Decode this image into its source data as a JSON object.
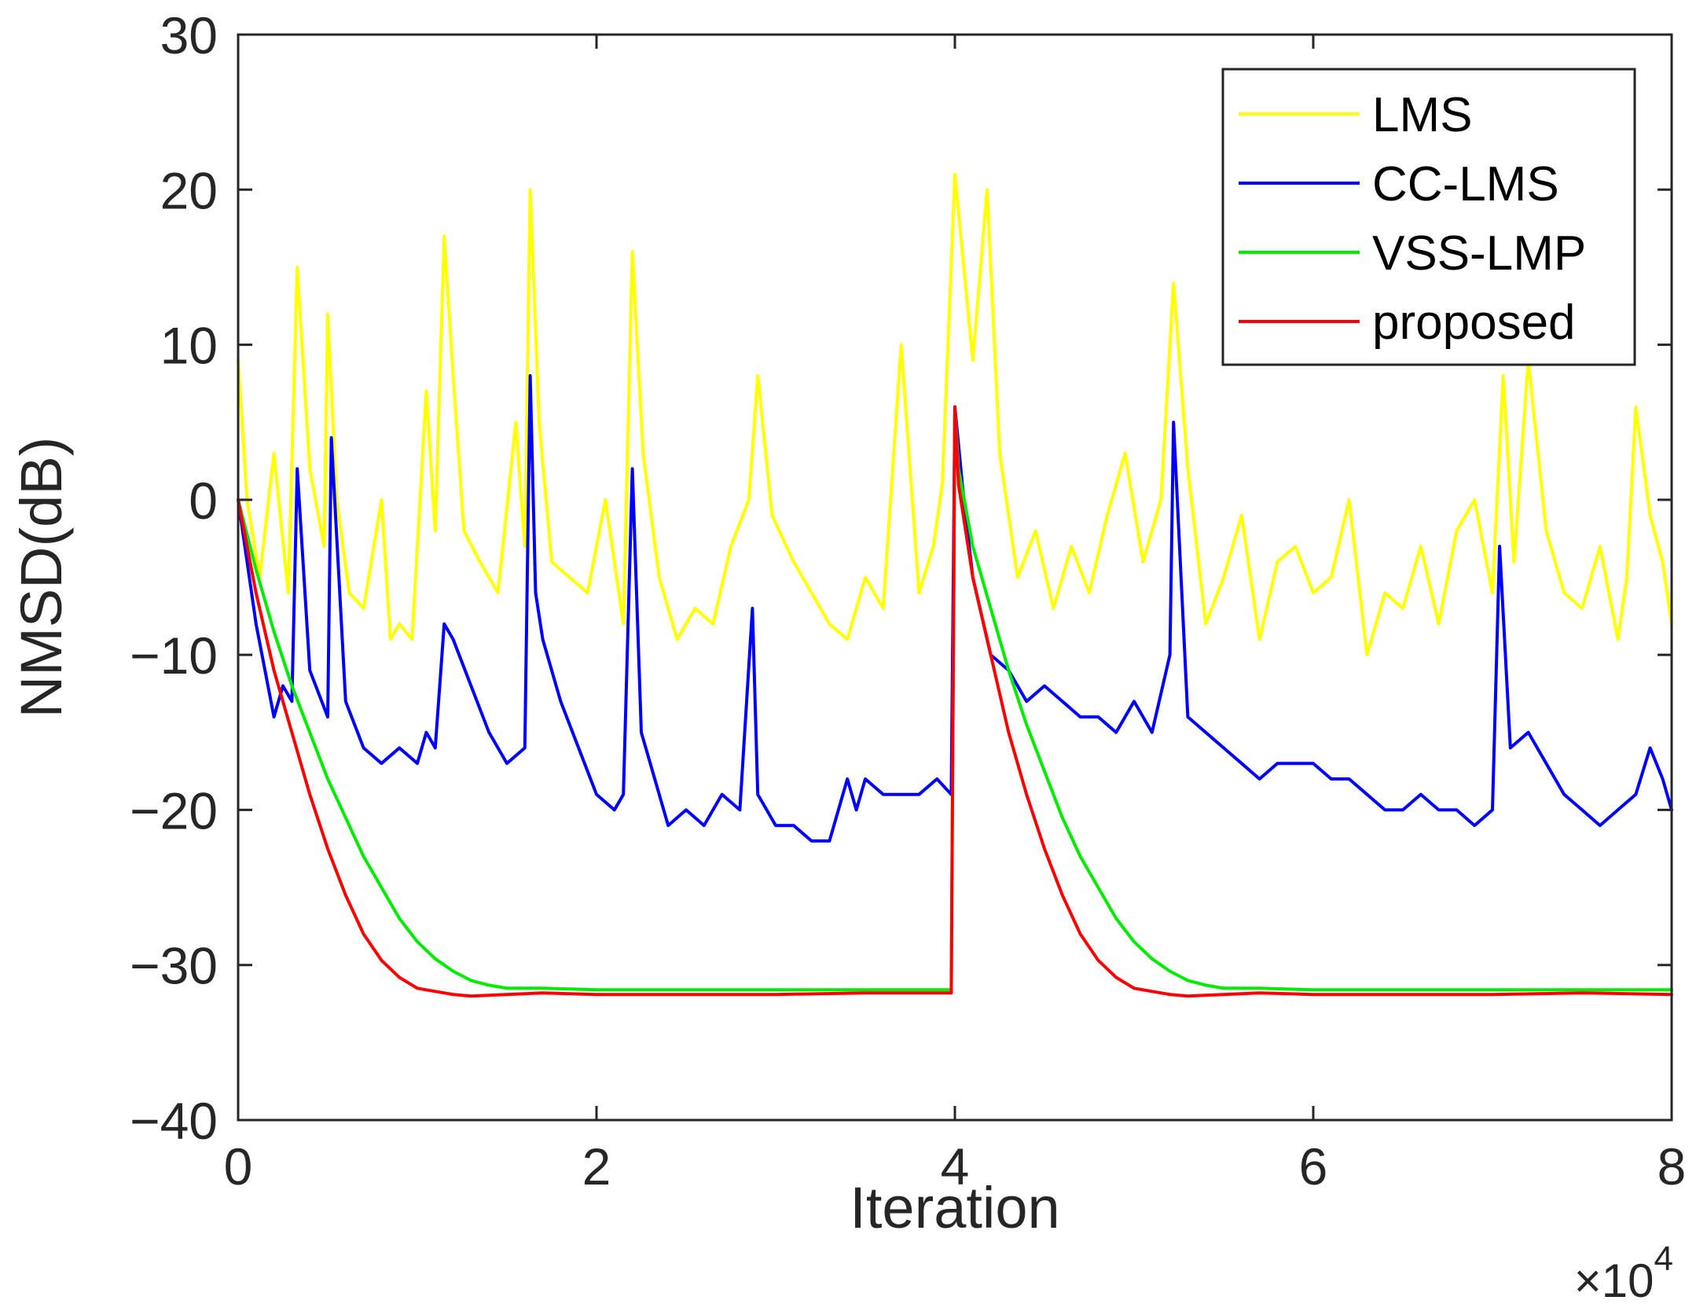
{
  "chart_data": {
    "type": "line",
    "title": "",
    "xlabel": "Iteration",
    "ylabel": "NMSD(dB)",
    "x_multiplier_label": {
      "base": "×10",
      "exponent": "4"
    },
    "xlim": [
      0,
      8
    ],
    "ylim": [
      -40,
      30
    ],
    "xticks": [
      0,
      2,
      4,
      6,
      8
    ],
    "xtick_labels": [
      "0",
      "2",
      "4",
      "6",
      "8"
    ],
    "yticks": [
      30,
      20,
      10,
      0,
      -10,
      -20,
      -30,
      -40
    ],
    "ytick_labels": [
      "30",
      "20",
      "10",
      "0",
      "−10",
      "−20",
      "−30",
      "−40"
    ],
    "grid": false,
    "legend_position": "top-right",
    "series": [
      {
        "name": "LMS",
        "color": "#ffff00",
        "x": [
          0,
          0.05,
          0.12,
          0.2,
          0.28,
          0.33,
          0.4,
          0.48,
          0.5,
          0.55,
          0.62,
          0.7,
          0.8,
          0.85,
          0.9,
          0.97,
          1.05,
          1.1,
          1.15,
          1.2,
          1.26,
          1.35,
          1.45,
          1.55,
          1.6,
          1.63,
          1.68,
          1.75,
          1.85,
          1.95,
          2.05,
          2.15,
          2.2,
          2.26,
          2.35,
          2.45,
          2.55,
          2.65,
          2.75,
          2.85,
          2.9,
          2.98,
          3.1,
          3.2,
          3.3,
          3.4,
          3.5,
          3.6,
          3.7,
          3.8,
          3.88,
          3.93,
          4.0,
          4.05,
          4.1,
          4.18,
          4.25,
          4.35,
          4.45,
          4.55,
          4.65,
          4.75,
          4.85,
          4.95,
          5.05,
          5.15,
          5.22,
          5.3,
          5.4,
          5.5,
          5.6,
          5.7,
          5.8,
          5.9,
          6.0,
          6.1,
          6.2,
          6.3,
          6.4,
          6.5,
          6.6,
          6.7,
          6.8,
          6.9,
          7.0,
          7.06,
          7.12,
          7.2,
          7.3,
          7.4,
          7.5,
          7.6,
          7.7,
          7.75,
          7.8,
          7.88,
          7.95,
          8.0
        ],
        "values": [
          9,
          0,
          -5,
          3,
          -6,
          15,
          2,
          -3,
          12,
          0,
          -6,
          -7,
          0,
          -9,
          -8,
          -9,
          7,
          -2,
          17,
          8,
          -2,
          -4,
          -6,
          5,
          -3,
          20,
          5,
          -4,
          -5,
          -6,
          0,
          -8,
          16,
          3,
          -5,
          -9,
          -7,
          -8,
          -3,
          0,
          8,
          -1,
          -4,
          -6,
          -8,
          -9,
          -5,
          -7,
          10,
          -6,
          -3,
          1,
          21,
          15,
          9,
          20,
          3,
          -5,
          -2,
          -7,
          -3,
          -6,
          -1,
          3,
          -4,
          0,
          14,
          2,
          -8,
          -5,
          -1,
          -9,
          -4,
          -3,
          -6,
          -5,
          0,
          -10,
          -6,
          -7,
          -3,
          -8,
          -2,
          0,
          -6,
          8,
          -4,
          9,
          -2,
          -6,
          -7,
          -3,
          -9,
          -5,
          6,
          -1,
          -4,
          -8
        ]
      },
      {
        "name": "CC-LMS",
        "color": "#0000ff",
        "x": [
          0,
          0.05,
          0.1,
          0.15,
          0.2,
          0.25,
          0.3,
          0.33,
          0.4,
          0.5,
          0.52,
          0.6,
          0.7,
          0.8,
          0.9,
          1.0,
          1.05,
          1.1,
          1.15,
          1.2,
          1.3,
          1.4,
          1.5,
          1.6,
          1.63,
          1.66,
          1.7,
          1.8,
          1.9,
          2.0,
          2.1,
          2.15,
          2.2,
          2.25,
          2.3,
          2.4,
          2.5,
          2.6,
          2.7,
          2.8,
          2.87,
          2.9,
          3.0,
          3.1,
          3.2,
          3.3,
          3.4,
          3.45,
          3.5,
          3.6,
          3.7,
          3.8,
          3.9,
          3.98,
          4.0,
          4.05,
          4.1,
          4.2,
          4.3,
          4.4,
          4.5,
          4.6,
          4.7,
          4.8,
          4.9,
          5.0,
          5.1,
          5.2,
          5.22,
          5.3,
          5.4,
          5.5,
          5.6,
          5.7,
          5.8,
          5.9,
          6.0,
          6.1,
          6.2,
          6.3,
          6.4,
          6.5,
          6.6,
          6.7,
          6.8,
          6.9,
          7.0,
          7.04,
          7.1,
          7.2,
          7.3,
          7.4,
          7.5,
          7.6,
          7.7,
          7.8,
          7.88,
          7.95,
          8.0
        ],
        "values": [
          0,
          -4,
          -8,
          -11,
          -14,
          -12,
          -13,
          2,
          -11,
          -14,
          4,
          -13,
          -16,
          -17,
          -16,
          -17,
          -15,
          -16,
          -8,
          -9,
          -12,
          -15,
          -17,
          -16,
          8,
          -6,
          -9,
          -13,
          -16,
          -19,
          -20,
          -19,
          2,
          -15,
          -17,
          -21,
          -20,
          -21,
          -19,
          -20,
          -7,
          -19,
          -21,
          -21,
          -22,
          -22,
          -18,
          -20,
          -18,
          -19,
          -19,
          -19,
          -18,
          -19,
          6,
          0,
          -5,
          -10,
          -11,
          -13,
          -12,
          -13,
          -14,
          -14,
          -15,
          -13,
          -15,
          -10,
          5,
          -14,
          -15,
          -16,
          -17,
          -18,
          -17,
          -17,
          -17,
          -18,
          -18,
          -19,
          -20,
          -20,
          -19,
          -20,
          -20,
          -21,
          -20,
          -3,
          -16,
          -15,
          -17,
          -19,
          -20,
          -21,
          -20,
          -19,
          -16,
          -18,
          -20
        ]
      },
      {
        "name": "VSS-LMP",
        "color": "#00ee00",
        "x": [
          0,
          0.1,
          0.2,
          0.3,
          0.4,
          0.5,
          0.6,
          0.7,
          0.8,
          0.9,
          1.0,
          1.1,
          1.2,
          1.3,
          1.4,
          1.5,
          1.7,
          2.0,
          2.5,
          3.0,
          3.5,
          3.98,
          4.0,
          4.02,
          4.1,
          4.2,
          4.3,
          4.4,
          4.5,
          4.6,
          4.7,
          4.8,
          4.9,
          5.0,
          5.1,
          5.2,
          5.3,
          5.4,
          5.5,
          5.7,
          6.0,
          6.5,
          7.0,
          7.5,
          8.0
        ],
        "values": [
          0,
          -4.5,
          -8.5,
          -12,
          -15,
          -18,
          -20.5,
          -23,
          -25,
          -27,
          -28.5,
          -29.6,
          -30.4,
          -31,
          -31.3,
          -31.5,
          -31.5,
          -31.6,
          -31.6,
          -31.6,
          -31.6,
          -31.6,
          6,
          2,
          -3,
          -7,
          -11,
          -14.5,
          -17.5,
          -20.5,
          -23,
          -25,
          -27,
          -28.5,
          -29.6,
          -30.4,
          -31,
          -31.3,
          -31.5,
          -31.5,
          -31.6,
          -31.6,
          -31.6,
          -31.6,
          -31.6
        ]
      },
      {
        "name": "proposed",
        "color": "#ff0000",
        "x": [
          0,
          0.1,
          0.2,
          0.3,
          0.4,
          0.5,
          0.6,
          0.7,
          0.8,
          0.9,
          1.0,
          1.1,
          1.2,
          1.3,
          1.5,
          1.7,
          2.0,
          2.5,
          3.0,
          3.5,
          3.98,
          4.0,
          4.02,
          4.1,
          4.2,
          4.3,
          4.4,
          4.5,
          4.6,
          4.7,
          4.8,
          4.9,
          5.0,
          5.1,
          5.2,
          5.3,
          5.5,
          5.7,
          6.0,
          6.5,
          7.0,
          7.5,
          8.0
        ],
        "values": [
          0,
          -6,
          -11,
          -15,
          -19,
          -22.5,
          -25.5,
          -28,
          -29.7,
          -30.8,
          -31.5,
          -31.7,
          -31.9,
          -32,
          -31.9,
          -31.8,
          -31.9,
          -31.9,
          -31.9,
          -31.8,
          -31.8,
          6,
          1,
          -5,
          -10,
          -15,
          -19,
          -22.5,
          -25.5,
          -28,
          -29.7,
          -30.8,
          -31.5,
          -31.7,
          -31.9,
          -32,
          -31.9,
          -31.8,
          -31.9,
          -31.9,
          -31.9,
          -31.8,
          -31.9
        ]
      }
    ]
  }
}
